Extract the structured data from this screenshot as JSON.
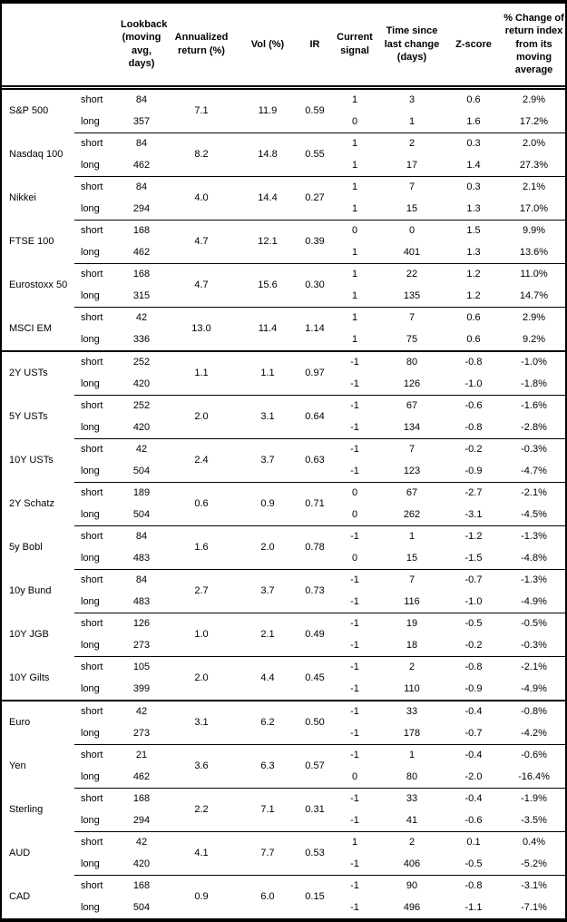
{
  "table": {
    "column_headers": {
      "lookback": "Lookback (moving avg, days)",
      "annualized_return": "Annualized return (%)",
      "vol": "Vol (%)",
      "ir": "IR",
      "current_signal": "Current signal",
      "time_since_last_change": "Time since last change (days)",
      "z_score": "Z-score",
      "pct_change": "% Change of return index from its moving average"
    },
    "row_labels": {
      "short": "short",
      "long": "long"
    },
    "sections": [
      {
        "instruments": [
          {
            "name": "S&P 500",
            "annualized_return": "7.1",
            "vol": "11.9",
            "ir": "0.59",
            "short": {
              "lookback": "84",
              "signal": "1",
              "time_since": "3",
              "z_score": "0.6",
              "pct_change": "2.9%"
            },
            "long": {
              "lookback": "357",
              "signal": "0",
              "time_since": "1",
              "z_score": "1.6",
              "pct_change": "17.2%"
            }
          },
          {
            "name": "Nasdaq 100",
            "annualized_return": "8.2",
            "vol": "14.8",
            "ir": "0.55",
            "short": {
              "lookback": "84",
              "signal": "1",
              "time_since": "2",
              "z_score": "0.3",
              "pct_change": "2.0%"
            },
            "long": {
              "lookback": "462",
              "signal": "1",
              "time_since": "17",
              "z_score": "1.4",
              "pct_change": "27.3%"
            }
          },
          {
            "name": "Nikkei",
            "annualized_return": "4.0",
            "vol": "14.4",
            "ir": "0.27",
            "short": {
              "lookback": "84",
              "signal": "1",
              "time_since": "7",
              "z_score": "0.3",
              "pct_change": "2.1%"
            },
            "long": {
              "lookback": "294",
              "signal": "1",
              "time_since": "15",
              "z_score": "1.3",
              "pct_change": "17.0%"
            }
          },
          {
            "name": "FTSE 100",
            "annualized_return": "4.7",
            "vol": "12.1",
            "ir": "0.39",
            "short": {
              "lookback": "168",
              "signal": "0",
              "time_since": "0",
              "z_score": "1.5",
              "pct_change": "9.9%"
            },
            "long": {
              "lookback": "462",
              "signal": "1",
              "time_since": "401",
              "z_score": "1.3",
              "pct_change": "13.6%"
            }
          },
          {
            "name": "Eurostoxx 50",
            "annualized_return": "4.7",
            "vol": "15.6",
            "ir": "0.30",
            "short": {
              "lookback": "168",
              "signal": "1",
              "time_since": "22",
              "z_score": "1.2",
              "pct_change": "11.0%"
            },
            "long": {
              "lookback": "315",
              "signal": "1",
              "time_since": "135",
              "z_score": "1.2",
              "pct_change": "14.7%"
            }
          },
          {
            "name": "MSCI EM",
            "annualized_return": "13.0",
            "vol": "11.4",
            "ir": "1.14",
            "short": {
              "lookback": "42",
              "signal": "1",
              "time_since": "7",
              "z_score": "0.6",
              "pct_change": "2.9%"
            },
            "long": {
              "lookback": "336",
              "signal": "1",
              "time_since": "75",
              "z_score": "0.6",
              "pct_change": "9.2%"
            }
          }
        ]
      },
      {
        "instruments": [
          {
            "name": "2Y USTs",
            "annualized_return": "1.1",
            "vol": "1.1",
            "ir": "0.97",
            "short": {
              "lookback": "252",
              "signal": "-1",
              "time_since": "80",
              "z_score": "-0.8",
              "pct_change": "-1.0%"
            },
            "long": {
              "lookback": "420",
              "signal": "-1",
              "time_since": "126",
              "z_score": "-1.0",
              "pct_change": "-1.8%"
            }
          },
          {
            "name": "5Y USTs",
            "annualized_return": "2.0",
            "vol": "3.1",
            "ir": "0.64",
            "short": {
              "lookback": "252",
              "signal": "-1",
              "time_since": "67",
              "z_score": "-0.6",
              "pct_change": "-1.6%"
            },
            "long": {
              "lookback": "420",
              "signal": "-1",
              "time_since": "134",
              "z_score": "-0.8",
              "pct_change": "-2.8%"
            }
          },
          {
            "name": "10Y USTs",
            "annualized_return": "2.4",
            "vol": "3.7",
            "ir": "0.63",
            "short": {
              "lookback": "42",
              "signal": "-1",
              "time_since": "7",
              "z_score": "-0.2",
              "pct_change": "-0.3%"
            },
            "long": {
              "lookback": "504",
              "signal": "-1",
              "time_since": "123",
              "z_score": "-0.9",
              "pct_change": "-4.7%"
            }
          },
          {
            "name": "2Y Schatz",
            "annualized_return": "0.6",
            "vol": "0.9",
            "ir": "0.71",
            "short": {
              "lookback": "189",
              "signal": "0",
              "time_since": "67",
              "z_score": "-2.7",
              "pct_change": "-2.1%"
            },
            "long": {
              "lookback": "504",
              "signal": "0",
              "time_since": "262",
              "z_score": "-3.1",
              "pct_change": "-4.5%"
            }
          },
          {
            "name": "5y Bobl",
            "annualized_return": "1.6",
            "vol": "2.0",
            "ir": "0.78",
            "short": {
              "lookback": "84",
              "signal": "-1",
              "time_since": "1",
              "z_score": "-1.2",
              "pct_change": "-1.3%"
            },
            "long": {
              "lookback": "483",
              "signal": "0",
              "time_since": "15",
              "z_score": "-1.5",
              "pct_change": "-4.8%"
            }
          },
          {
            "name": "10y Bund",
            "annualized_return": "2.7",
            "vol": "3.7",
            "ir": "0.73",
            "short": {
              "lookback": "84",
              "signal": "-1",
              "time_since": "7",
              "z_score": "-0.7",
              "pct_change": "-1.3%"
            },
            "long": {
              "lookback": "483",
              "signal": "-1",
              "time_since": "116",
              "z_score": "-1.0",
              "pct_change": "-4.9%"
            }
          },
          {
            "name": "10Y JGB",
            "annualized_return": "1.0",
            "vol": "2.1",
            "ir": "0.49",
            "short": {
              "lookback": "126",
              "signal": "-1",
              "time_since": "19",
              "z_score": "-0.5",
              "pct_change": "-0.5%"
            },
            "long": {
              "lookback": "273",
              "signal": "-1",
              "time_since": "18",
              "z_score": "-0.2",
              "pct_change": "-0.3%"
            }
          },
          {
            "name": "10Y Gilts",
            "annualized_return": "2.0",
            "vol": "4.4",
            "ir": "0.45",
            "short": {
              "lookback": "105",
              "signal": "-1",
              "time_since": "2",
              "z_score": "-0.8",
              "pct_change": "-2.1%"
            },
            "long": {
              "lookback": "399",
              "signal": "-1",
              "time_since": "110",
              "z_score": "-0.9",
              "pct_change": "-4.9%"
            }
          }
        ]
      },
      {
        "instruments": [
          {
            "name": "Euro",
            "annualized_return": "3.1",
            "vol": "6.2",
            "ir": "0.50",
            "short": {
              "lookback": "42",
              "signal": "-1",
              "time_since": "33",
              "z_score": "-0.4",
              "pct_change": "-0.8%"
            },
            "long": {
              "lookback": "273",
              "signal": "-1",
              "time_since": "178",
              "z_score": "-0.7",
              "pct_change": "-4.2%"
            }
          },
          {
            "name": "Yen",
            "annualized_return": "3.6",
            "vol": "6.3",
            "ir": "0.57",
            "short": {
              "lookback": "21",
              "signal": "-1",
              "time_since": "1",
              "z_score": "-0.4",
              "pct_change": "-0.6%"
            },
            "long": {
              "lookback": "462",
              "signal": "0",
              "time_since": "80",
              "z_score": "-2.0",
              "pct_change": "-16.4%"
            }
          },
          {
            "name": "Sterling",
            "annualized_return": "2.2",
            "vol": "7.1",
            "ir": "0.31",
            "short": {
              "lookback": "168",
              "signal": "-1",
              "time_since": "33",
              "z_score": "-0.4",
              "pct_change": "-1.9%"
            },
            "long": {
              "lookback": "294",
              "signal": "-1",
              "time_since": "41",
              "z_score": "-0.6",
              "pct_change": "-3.5%"
            }
          },
          {
            "name": "AUD",
            "annualized_return": "4.1",
            "vol": "7.7",
            "ir": "0.53",
            "short": {
              "lookback": "42",
              "signal": "1",
              "time_since": "2",
              "z_score": "0.1",
              "pct_change": "0.4%"
            },
            "long": {
              "lookback": "420",
              "signal": "-1",
              "time_since": "406",
              "z_score": "-0.5",
              "pct_change": "-5.2%"
            }
          },
          {
            "name": "CAD",
            "annualized_return": "0.9",
            "vol": "6.0",
            "ir": "0.15",
            "short": {
              "lookback": "168",
              "signal": "-1",
              "time_since": "90",
              "z_score": "-0.8",
              "pct_change": "-3.1%"
            },
            "long": {
              "lookback": "504",
              "signal": "-1",
              "time_since": "496",
              "z_score": "-1.1",
              "pct_change": "-7.1%"
            }
          }
        ]
      }
    ]
  },
  "colors": {
    "text": "#000000",
    "background": "#ffffff",
    "border": "#000000"
  }
}
